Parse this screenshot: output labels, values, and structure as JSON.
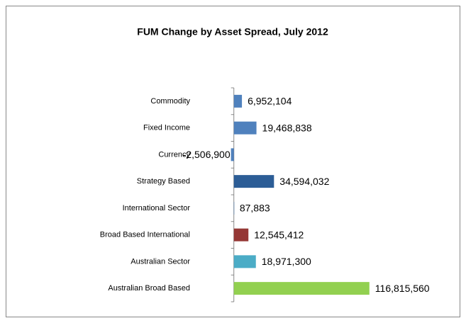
{
  "chart_data": {
    "type": "hbar",
    "title": "FUM Change by Asset Spread, July 2012",
    "categories": [
      "Commodity",
      "Fixed Income",
      "Currency",
      "Strategy Based",
      "International Sector",
      "Broad Based International",
      "Australian Sector",
      "Australian Broad Based"
    ],
    "values": [
      6952104,
      19468838,
      -2506900,
      34594032,
      87883,
      12545412,
      18971300,
      116815560
    ],
    "value_labels": [
      "6,952,104",
      "19,468,838",
      "-2,506,900",
      "34,594,032",
      "87,883",
      "12,545,412",
      "18,971,300",
      "116,815,560"
    ],
    "colors": [
      "#4f81bd",
      "#4f81bd",
      "#4f81bd",
      "#2c5d96",
      "#4f81bd",
      "#953735",
      "#4bacc6",
      "#92d050"
    ],
    "xlim": [
      -20000000,
      120000000
    ]
  }
}
